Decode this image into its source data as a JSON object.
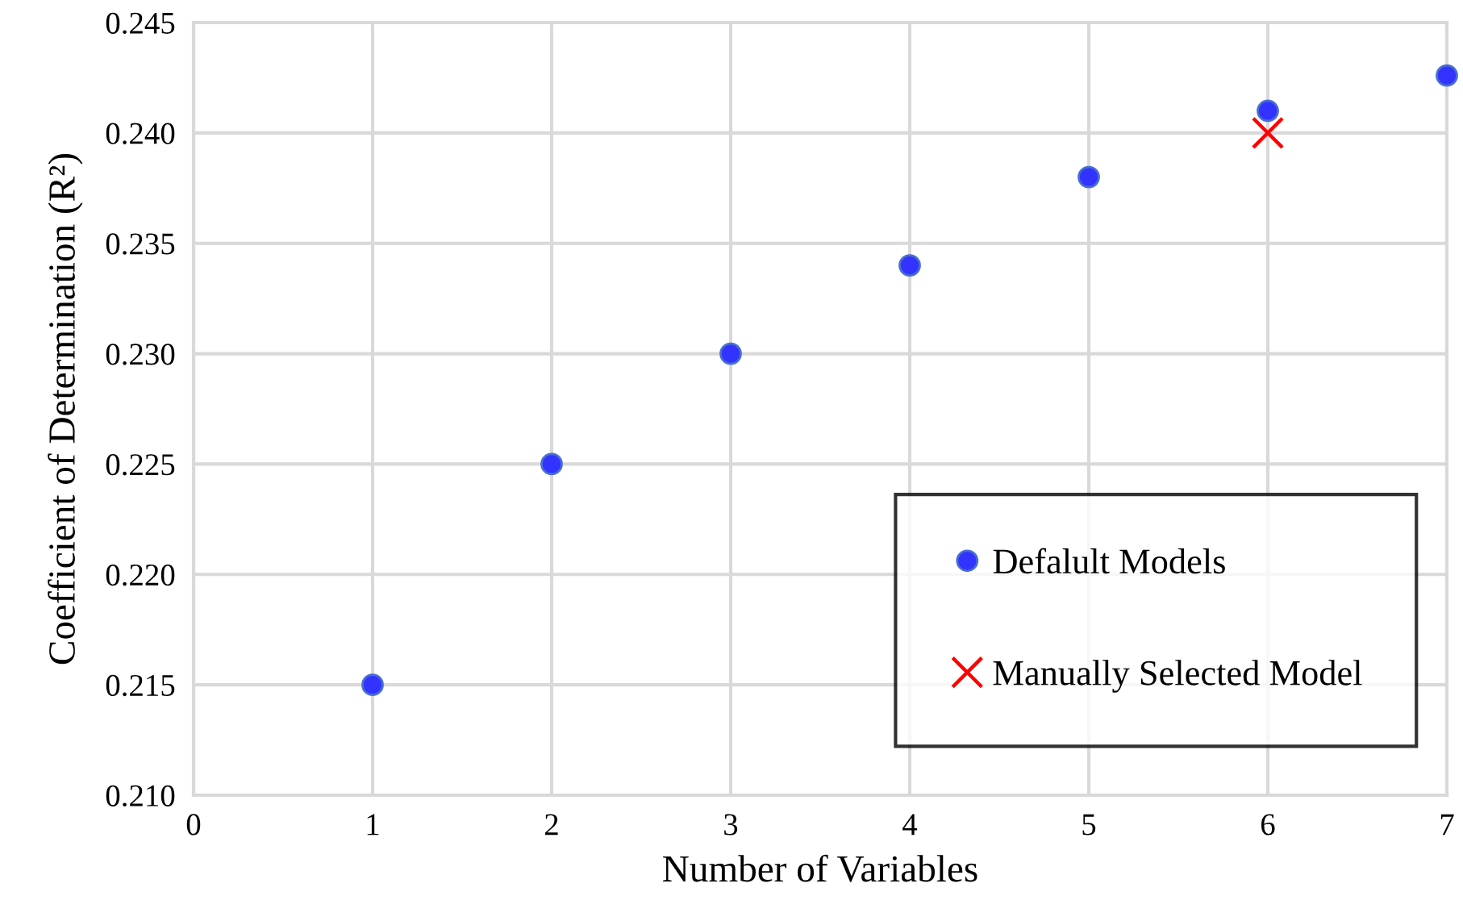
{
  "chart_data": {
    "type": "scatter",
    "xlabel": "Number of Variables",
    "ylabel": "Coefficient of Determination (R²)",
    "xlim": [
      0,
      7
    ],
    "xticks": [
      0,
      1,
      2,
      3,
      4,
      5,
      6,
      7
    ],
    "ylim": [
      0.21,
      0.245
    ],
    "yticks": [
      {
        "value": 0.21,
        "label": "0.210"
      },
      {
        "value": 0.215,
        "label": "0.215"
      },
      {
        "value": 0.22,
        "label": "0.220"
      },
      {
        "value": 0.225,
        "label": "0.225"
      },
      {
        "value": 0.23,
        "label": "0.230"
      },
      {
        "value": 0.235,
        "label": "0.235"
      },
      {
        "value": 0.24,
        "label": "0.240"
      },
      {
        "value": 0.245,
        "label": "0.245"
      }
    ],
    "grid": true,
    "legend": "bottom right",
    "series": [
      {
        "name": "Defalult Models",
        "color": "#3333ff",
        "marker": "circle",
        "x": [
          1,
          2,
          3,
          4,
          5,
          6,
          7
        ],
        "values": [
          0.215,
          0.225,
          0.23,
          0.234,
          0.238,
          0.241,
          0.2426
        ]
      },
      {
        "name": "Manually Selected Model",
        "color": "#ff0000",
        "marker": "cross",
        "x": [
          6
        ],
        "values": [
          0.24
        ]
      }
    ]
  }
}
